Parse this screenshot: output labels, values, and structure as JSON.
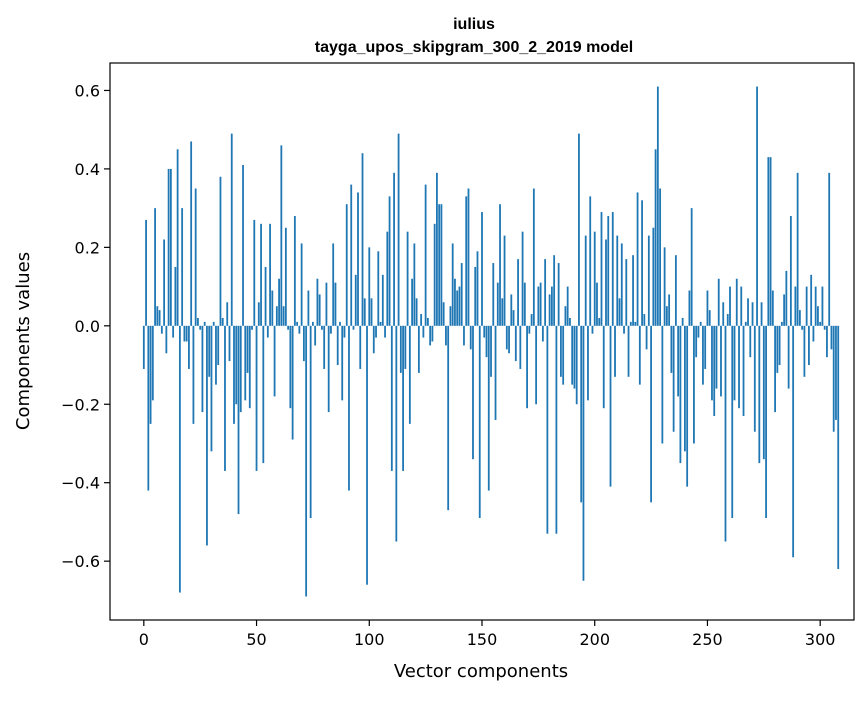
{
  "chart_data": {
    "type": "bar",
    "title_line1": "iulius",
    "title_line2": "tayga_upos_skipgram_300_2_2019 model",
    "xlabel": "Vector components",
    "ylabel": "Components values",
    "xlim": [
      -15,
      315
    ],
    "ylim": [
      -0.75,
      0.67
    ],
    "xticks": [
      0,
      50,
      100,
      150,
      200,
      250,
      300
    ],
    "yticks": [
      -0.6,
      -0.4,
      -0.2,
      0.0,
      0.2,
      0.4,
      0.6
    ],
    "ytick_labels": [
      "−0.6",
      "−0.4",
      "−0.2",
      "0.0",
      "0.2",
      "0.4",
      "0.6"
    ],
    "bar_color": "#1f77b4",
    "values": [
      -0.11,
      0.27,
      -0.42,
      -0.25,
      -0.19,
      0.3,
      0.05,
      0.04,
      -0.02,
      0.22,
      -0.07,
      0.4,
      0.4,
      -0.03,
      0.15,
      0.45,
      -0.68,
      0.3,
      -0.04,
      -0.04,
      -0.11,
      0.47,
      -0.25,
      0.35,
      0.02,
      -0.01,
      -0.22,
      0.01,
      -0.56,
      -0.13,
      -0.32,
      0.01,
      -0.15,
      -0.1,
      0.38,
      0.02,
      -0.37,
      0.06,
      -0.09,
      0.49,
      -0.25,
      -0.2,
      -0.48,
      -0.22,
      0.41,
      -0.19,
      -0.12,
      -0.21,
      -0.01,
      0.27,
      -0.37,
      0.06,
      0.26,
      -0.35,
      0.15,
      -0.03,
      0.26,
      0.09,
      -0.18,
      0.05,
      0.12,
      0.46,
      0.05,
      0.25,
      -0.01,
      -0.21,
      -0.29,
      0.28,
      0.01,
      -0.02,
      0.21,
      -0.09,
      -0.69,
      0.09,
      -0.49,
      0.01,
      -0.05,
      0.12,
      0.08,
      -0.01,
      -0.11,
      0.11,
      -0.22,
      -0.02,
      0.21,
      0.11,
      -0.1,
      0.01,
      -0.19,
      -0.03,
      0.31,
      -0.42,
      0.36,
      -0.01,
      0.13,
      0.34,
      -0.11,
      0.44,
      0.07,
      -0.66,
      0.2,
      0.07,
      -0.07,
      -0.03,
      0.19,
      0.01,
      0.13,
      -0.03,
      0.24,
      0.33,
      -0.37,
      0.39,
      -0.55,
      0.49,
      -0.12,
      -0.37,
      -0.11,
      0.24,
      -0.25,
      0.12,
      0.21,
      0.07,
      -0.12,
      0.03,
      -0.03,
      0.36,
      0.02,
      -0.05,
      -0.04,
      0.26,
      0.39,
      0.31,
      0.31,
      0.06,
      -0.05,
      -0.47,
      0.05,
      0.21,
      0.12,
      0.09,
      0.1,
      0.16,
      -0.05,
      0.33,
      0.35,
      -0.06,
      -0.34,
      0.15,
      0.19,
      -0.49,
      0.29,
      -0.03,
      -0.08,
      -0.42,
      -0.13,
      0.16,
      -0.24,
      0.11,
      0.31,
      0.07,
      0.23,
      -0.06,
      -0.07,
      0.08,
      0.04,
      -0.09,
      0.17,
      -0.11,
      0.24,
      0.11,
      -0.21,
      -0.02,
      0.03,
      0.35,
      -0.2,
      0.1,
      0.11,
      -0.04,
      0.17,
      -0.53,
      0.08,
      0.1,
      0.18,
      -0.53,
      0.16,
      -0.13,
      -0.15,
      0.05,
      0.1,
      0.02,
      -0.15,
      -0.16,
      -0.2,
      0.49,
      -0.45,
      -0.65,
      0.23,
      -0.19,
      0.33,
      -0.02,
      0.24,
      0.11,
      0.02,
      0.29,
      -0.21,
      0.22,
      0.28,
      -0.41,
      0.29,
      -0.13,
      0.23,
      0.07,
      0.21,
      -0.02,
      0.17,
      -0.13,
      0.01,
      0.18,
      0.01,
      0.34,
      -0.15,
      0.32,
      0.03,
      -0.06,
      0.23,
      -0.45,
      0.25,
      0.45,
      0.61,
      0.35,
      -0.3,
      0.2,
      0.05,
      0.08,
      -0.12,
      -0.27,
      0.18,
      -0.18,
      -0.35,
      0.02,
      -0.32,
      -0.41,
      0.09,
      0.3,
      -0.3,
      -0.08,
      -0.03,
      0.01,
      -0.15,
      -0.11,
      0.09,
      0.04,
      -0.19,
      -0.23,
      -0.16,
      0.12,
      -0.18,
      0.06,
      -0.55,
      0.03,
      0.1,
      -0.49,
      -0.19,
      0.12,
      -0.21,
      0.1,
      -0.23,
      0.01,
      0.07,
      -0.08,
      0.06,
      -0.27,
      0.61,
      -0.35,
      0.06,
      -0.34,
      -0.49,
      0.43,
      0.43,
      0.09,
      -0.22,
      -0.12,
      -0.1,
      0.01,
      0.08,
      0.14,
      -0.16,
      0.28,
      -0.59,
      0.1,
      0.39,
      0.04,
      -0.01,
      -0.13,
      0.1,
      -0.1,
      0.13,
      -0.04,
      0.1,
      0.05,
      0.01,
      0.1,
      -0.01,
      -0.08,
      0.39,
      -0.06,
      -0.27,
      -0.24,
      -0.62
    ]
  }
}
